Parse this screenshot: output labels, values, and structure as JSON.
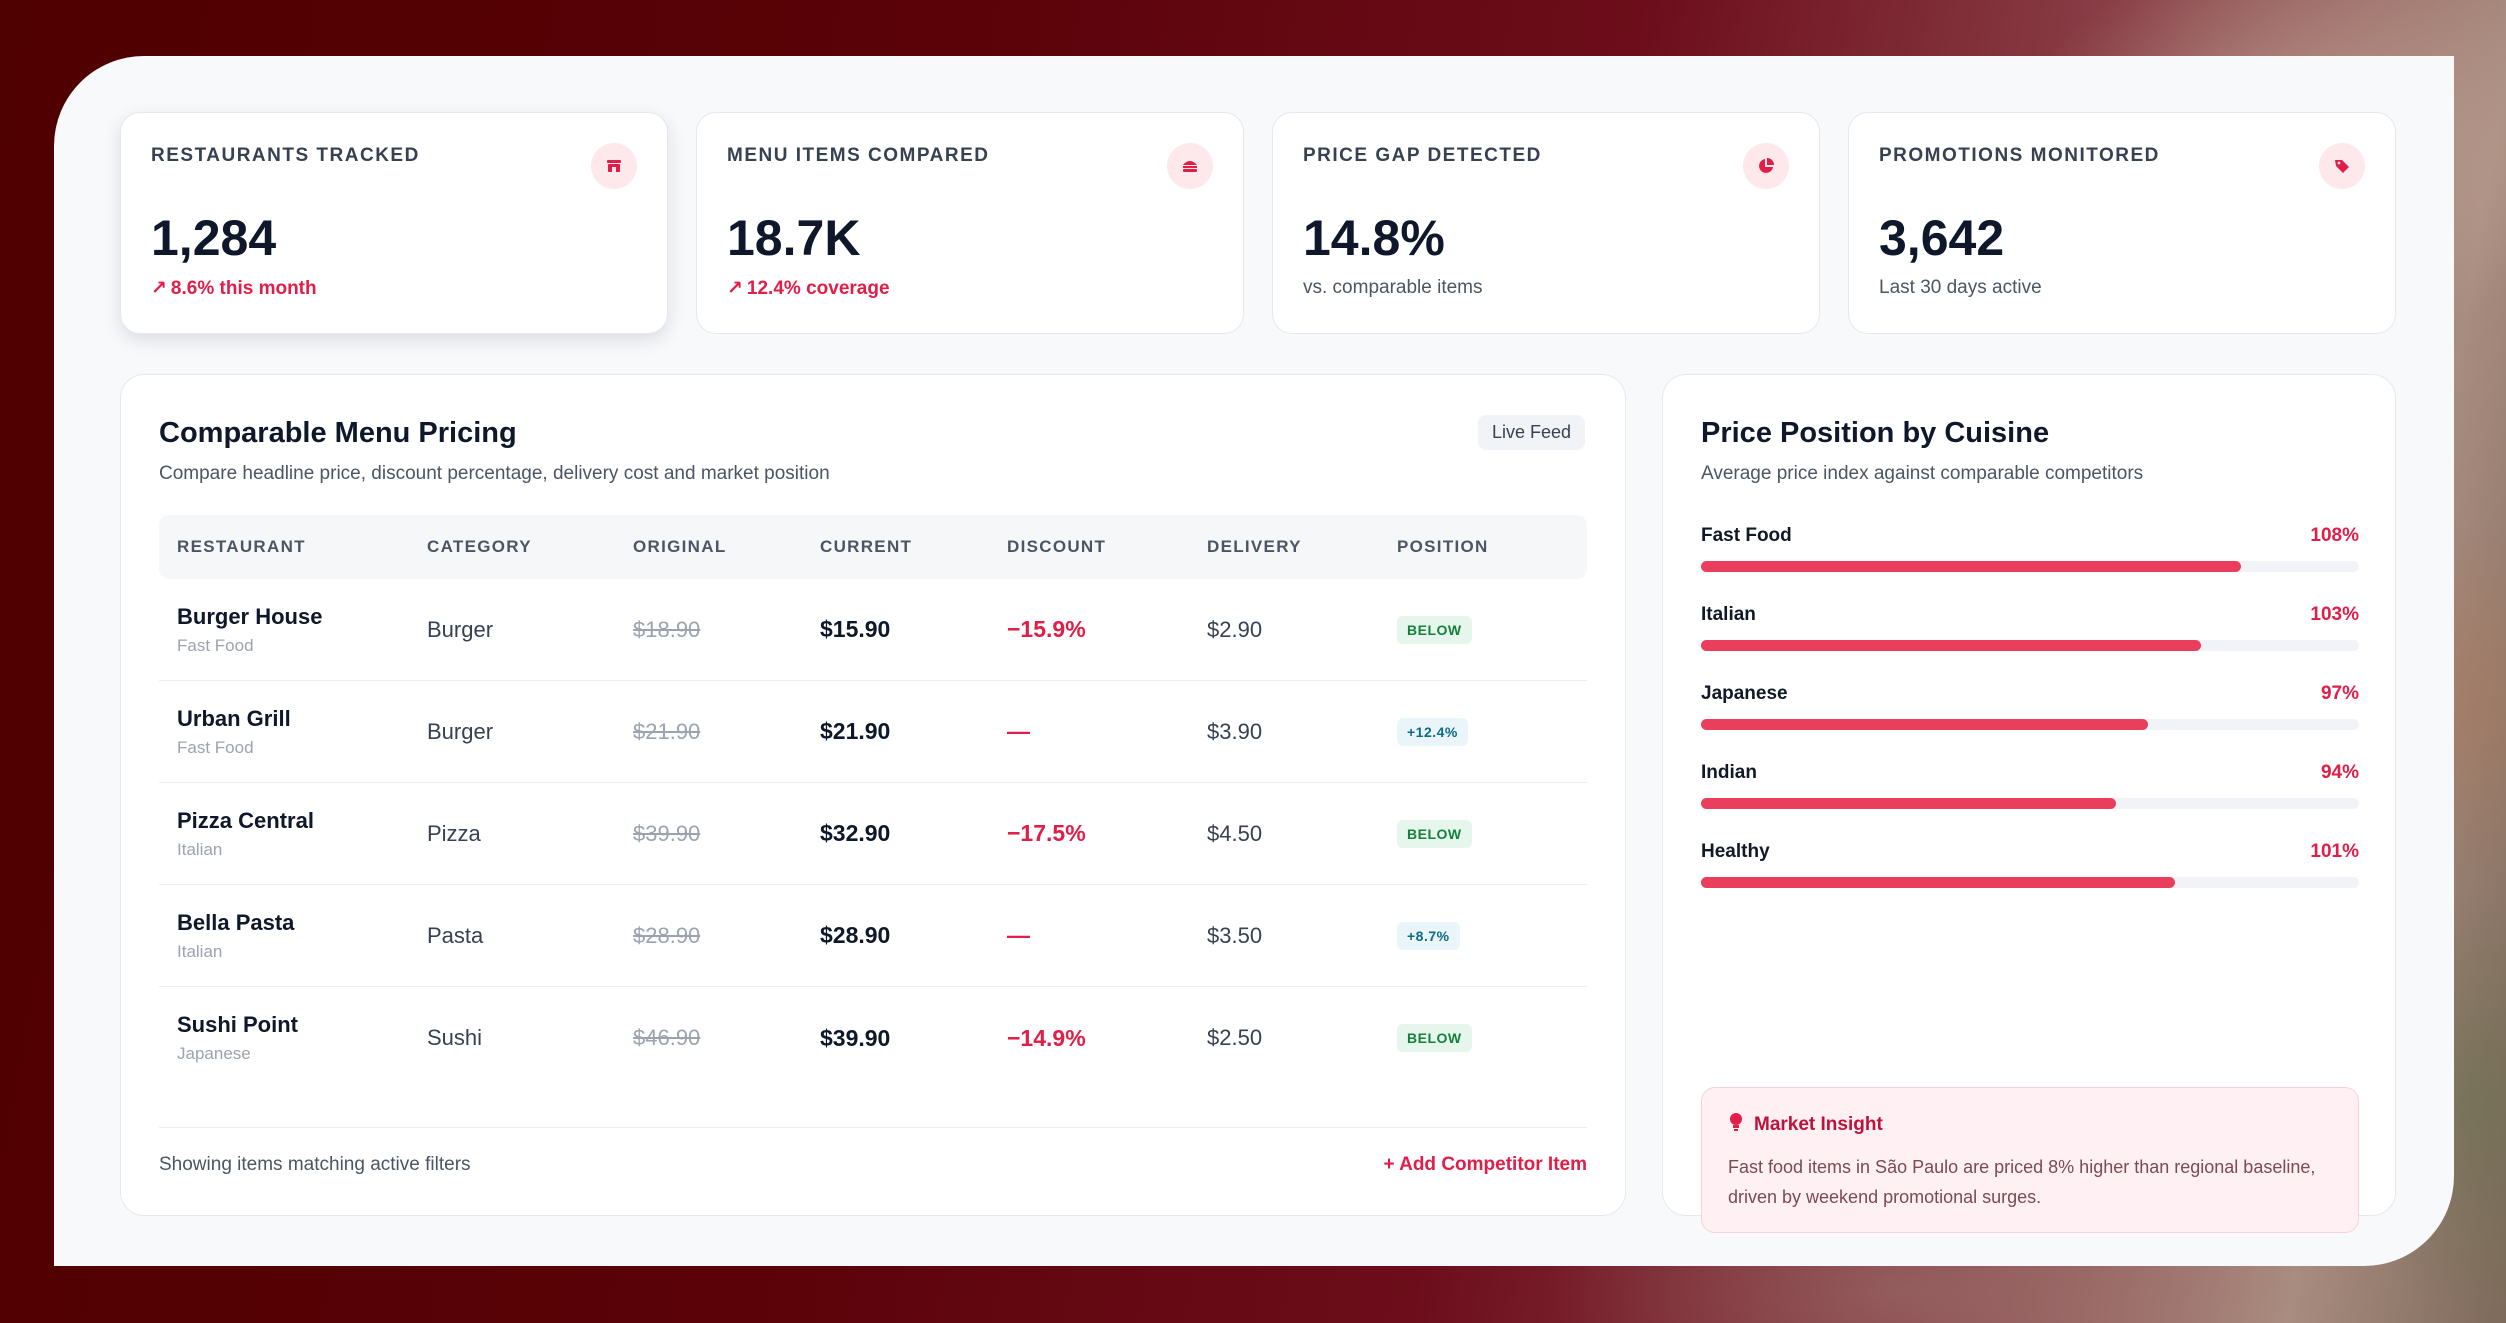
{
  "kpis": [
    {
      "label": "RESTAURANTS TRACKED",
      "value": "1,284",
      "sub": "8.6% this month",
      "trend": true,
      "icon": "store-icon"
    },
    {
      "label": "MENU ITEMS COMPARED",
      "value": "18.7K",
      "sub": "12.4% coverage",
      "trend": true,
      "icon": "burger-icon"
    },
    {
      "label": "PRICE GAP DETECTED",
      "value": "14.8%",
      "sub": "vs. comparable items",
      "trend": false,
      "icon": "pie-chart-icon"
    },
    {
      "label": "PROMOTIONS MONITORED",
      "value": "3,642",
      "sub": "Last 30 days active",
      "trend": false,
      "icon": "tag-icon"
    }
  ],
  "pricing": {
    "title": "Comparable Menu Pricing",
    "subtitle": "Compare headline price, discount percentage, delivery cost and market position",
    "badge": "Live Feed",
    "columns": [
      "RESTAURANT",
      "CATEGORY",
      "ORIGINAL",
      "CURRENT",
      "DISCOUNT",
      "DELIVERY",
      "POSITION"
    ],
    "rows": [
      {
        "name": "Burger House",
        "cuisine": "Fast Food",
        "category": "Burger",
        "original": "$18.90",
        "current": "$15.90",
        "discount": "−15.9%",
        "delivery": "$2.90",
        "position": "BELOW"
      },
      {
        "name": "Urban Grill",
        "cuisine": "Fast Food",
        "category": "Burger",
        "original": "$21.90",
        "current": "$21.90",
        "discount": "—",
        "delivery": "$3.90",
        "position": "+12.4%"
      },
      {
        "name": "Pizza Central",
        "cuisine": "Italian",
        "category": "Pizza",
        "original": "$39.90",
        "current": "$32.90",
        "discount": "−17.5%",
        "delivery": "$4.50",
        "position": "BELOW"
      },
      {
        "name": "Bella Pasta",
        "cuisine": "Italian",
        "category": "Pasta",
        "original": "$28.90",
        "current": "$28.90",
        "discount": "—",
        "delivery": "$3.50",
        "position": "+8.7%"
      },
      {
        "name": "Sushi Point",
        "cuisine": "Japanese",
        "category": "Sushi",
        "original": "$46.90",
        "current": "$39.90",
        "discount": "−14.9%",
        "delivery": "$2.50",
        "position": "BELOW"
      }
    ],
    "footer_note": "Showing items matching active filters",
    "add_link": "+ Add Competitor Item"
  },
  "cuisine": {
    "title": "Price Position by Cuisine",
    "subtitle": "Average price index against comparable competitors",
    "items": [
      {
        "name": "Fast Food",
        "label": "108%",
        "fill": 0.82
      },
      {
        "name": "Italian",
        "label": "103%",
        "fill": 0.76
      },
      {
        "name": "Japanese",
        "label": "97%",
        "fill": 0.68
      },
      {
        "name": "Indian",
        "label": "94%",
        "fill": 0.63
      },
      {
        "name": "Healthy",
        "label": "101%",
        "fill": 0.72
      }
    ],
    "insight_title": "Market Insight",
    "insight_text": "Fast food items in São Paulo are priced 8% higher than regional baseline, driven by weekend promotional surges."
  },
  "colors": {
    "accent": "#e11d48",
    "bar": "#ea3f5c",
    "below_badge": "#15803d",
    "above_badge": "#0e6a85"
  }
}
